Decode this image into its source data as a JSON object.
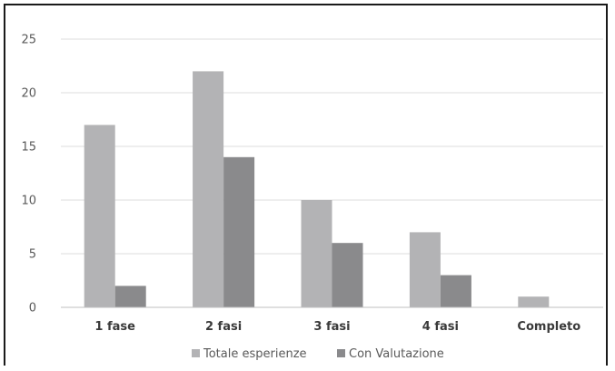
{
  "chart_data": {
    "type": "bar",
    "categories": [
      "1 fase",
      "2 fasi",
      "3 fasi",
      "4 fasi",
      "Completo"
    ],
    "series": [
      {
        "name": "Totale esperienze",
        "values": [
          17,
          22,
          10,
          7,
          1
        ],
        "color": "#b3b3b5"
      },
      {
        "name": "Con Valutazione",
        "values": [
          2,
          14,
          6,
          3,
          0
        ],
        "color": "#8a8a8c"
      }
    ],
    "yticks": [
      "0",
      "5",
      "10",
      "15",
      "20",
      "25"
    ],
    "ylim": [
      0,
      25
    ],
    "grid": true,
    "legend_position": "bottom"
  }
}
